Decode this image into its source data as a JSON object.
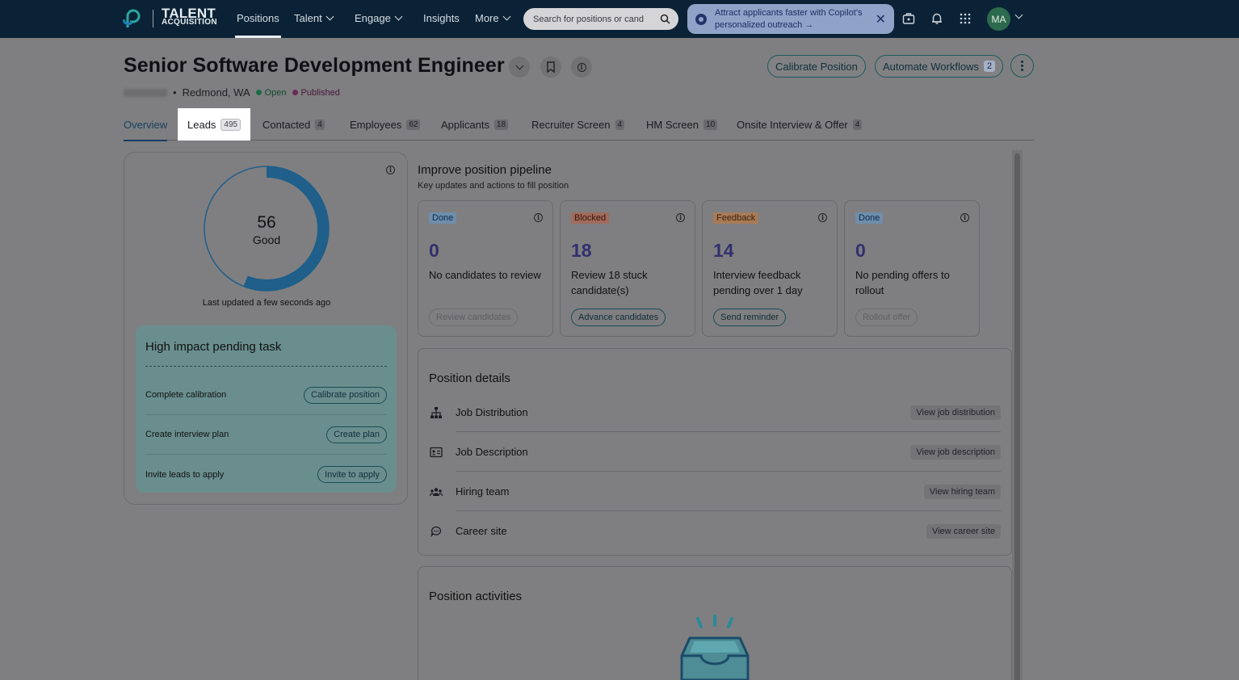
{
  "brand": {
    "line1": "TALENT",
    "line2": "ACQUISITION"
  },
  "nav": {
    "items": [
      {
        "label": "Positions",
        "dropdown": false
      },
      {
        "label": "Talent",
        "dropdown": true
      },
      {
        "label": "Engage",
        "dropdown": true
      },
      {
        "label": "Insights",
        "dropdown": false
      },
      {
        "label": "More",
        "dropdown": true
      }
    ],
    "search_placeholder": "Search for positions or cand",
    "copilot_banner": "Attract applicants faster with Copilot's personalized outreach →",
    "avatar_initials": "MA"
  },
  "header": {
    "title": "Senior Software Development Engineer",
    "calibrate_label": "Calibrate Position",
    "automate_label": "Automate Workflows",
    "automate_count": "2",
    "location": "Redmond, WA",
    "status_open": "Open",
    "status_published": "Published",
    "status_colors": {
      "open": "#1f6b46",
      "published": "#6a2b55"
    }
  },
  "tabs": [
    {
      "label": "Overview",
      "count": ""
    },
    {
      "label": "Leads",
      "count": "495"
    },
    {
      "label": "Contacted",
      "count": "4"
    },
    {
      "label": "Employees",
      "count": "62"
    },
    {
      "label": "Applicants",
      "count": "18"
    },
    {
      "label": "Recruiter Screen",
      "count": "4"
    },
    {
      "label": "HM Screen",
      "count": "10"
    },
    {
      "label": "Onsite Interview & Offer",
      "count": "4"
    }
  ],
  "score": {
    "value": "56",
    "fraction": 0.56,
    "label": "Good",
    "last_updated": "Last updated a few seconds ago",
    "color": "#1f5f8a"
  },
  "tasks": {
    "title": "High impact pending task",
    "rows": [
      {
        "label": "Complete calibration",
        "action": "Calibrate position"
      },
      {
        "label": "Create interview plan",
        "action": "Create plan"
      },
      {
        "label": "Invite leads to apply",
        "action": "Invite to apply"
      }
    ]
  },
  "pipeline": {
    "title": "Improve position pipeline",
    "subtitle": "Key updates and actions to fill position",
    "cards": [
      {
        "tag": "Done",
        "number": "0",
        "desc": "No candidates to review",
        "action": "Review candidates",
        "enabled": false
      },
      {
        "tag": "Blocked",
        "number": "18",
        "desc": "Review 18 stuck candidate(s)",
        "action": "Advance candidates",
        "enabled": true
      },
      {
        "tag": "Feedback",
        "number": "14",
        "desc": "Interview feedback pending over 1 day",
        "action": "Send reminder",
        "enabled": true
      },
      {
        "tag": "Done",
        "number": "0",
        "desc": "No pending offers to rollout",
        "action": "Rollout offer",
        "enabled": false
      }
    ]
  },
  "details": {
    "title": "Position details",
    "rows": [
      {
        "icon": "org-chart-icon",
        "label": "Job Distribution",
        "link": "View job distribution"
      },
      {
        "icon": "id-card-icon",
        "label": "Job Description",
        "link": "View job description"
      },
      {
        "icon": "people-icon",
        "label": "Hiring team",
        "link": "View hiring team"
      },
      {
        "icon": "chat-bubble-icon",
        "label": "Career site",
        "link": "View career site"
      }
    ]
  },
  "activities": {
    "title": "Position activities"
  }
}
